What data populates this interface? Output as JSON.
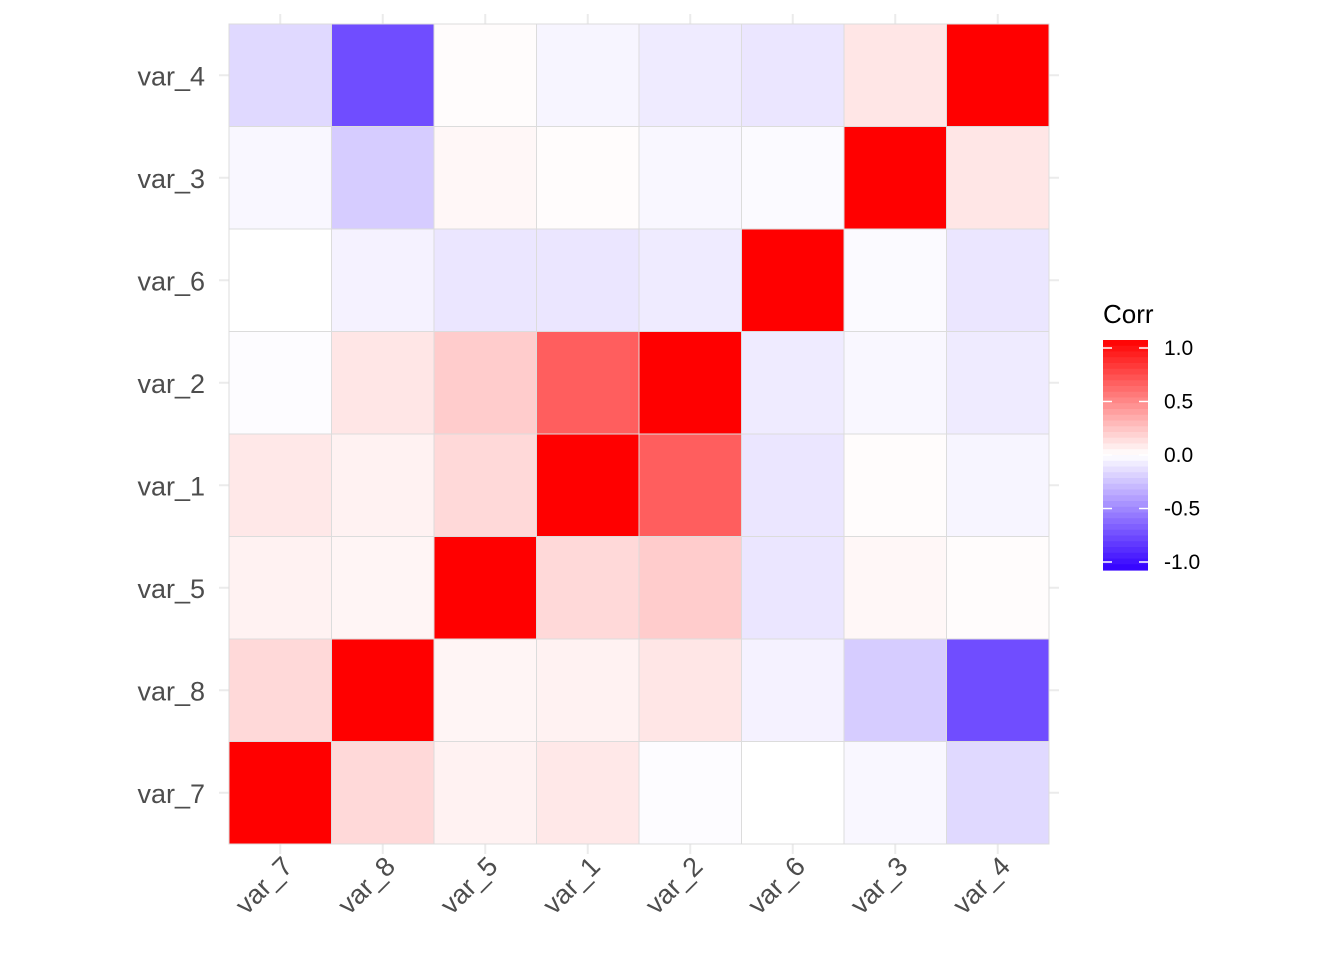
{
  "chart_data": {
    "type": "heatmap",
    "x_categories": [
      "var_7",
      "var_8",
      "var_5",
      "var_1",
      "var_2",
      "var_6",
      "var_3",
      "var_4"
    ],
    "y_categories": [
      "var_7",
      "var_8",
      "var_5",
      "var_1",
      "var_2",
      "var_6",
      "var_3",
      "var_4"
    ],
    "values": [
      [
        1.0,
        0.15,
        0.05,
        0.09,
        -0.01,
        0.0,
        -0.03,
        -0.15
      ],
      [
        0.15,
        1.0,
        0.04,
        0.05,
        0.1,
        -0.05,
        -0.2,
        -0.7
      ],
      [
        0.05,
        0.04,
        1.0,
        0.15,
        0.2,
        -0.1,
        0.03,
        0.01
      ],
      [
        0.09,
        0.05,
        0.15,
        1.0,
        0.63,
        -0.1,
        0.01,
        -0.04
      ],
      [
        -0.01,
        0.1,
        0.2,
        0.63,
        1.0,
        -0.08,
        -0.03,
        -0.08
      ],
      [
        0.0,
        -0.05,
        -0.1,
        -0.1,
        -0.08,
        1.0,
        -0.02,
        -0.1
      ],
      [
        -0.03,
        -0.2,
        0.03,
        0.01,
        -0.03,
        -0.02,
        1.0,
        0.1
      ],
      [
        -0.15,
        -0.7,
        0.01,
        -0.04,
        -0.08,
        -0.1,
        0.1,
        1.0
      ]
    ],
    "legend": {
      "title": "Corr",
      "ticks": [
        1.0,
        0.5,
        0.0,
        -0.5,
        -1.0
      ],
      "tick_labels": [
        "1.0",
        "0.5",
        "0.0",
        "-0.5",
        "-1.0"
      ],
      "range": [
        -1,
        1
      ],
      "position": "right"
    },
    "colors": {
      "low": "#3300ff",
      "mid": "#ffffff",
      "high": "#ff0000"
    },
    "grid": true
  }
}
